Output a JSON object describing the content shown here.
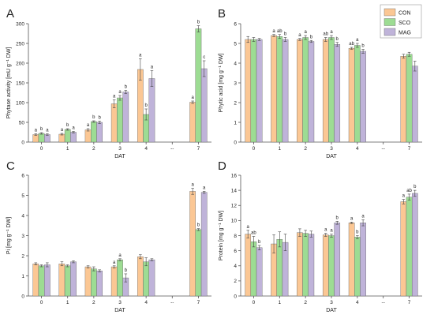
{
  "colors": {
    "CON": "#fbc794",
    "SCO": "#9ddc93",
    "MAG": "#bfb3d9",
    "axis": "#555555",
    "text": "#222222"
  },
  "legend": {
    "entries": [
      "CON",
      "SCO",
      "MAG"
    ],
    "placement": "top-right of panel B"
  },
  "chart_data": [
    {
      "panel": "A",
      "type": "bar",
      "categories": [
        "0",
        "1",
        "2",
        "3",
        "4",
        "--",
        "7"
      ],
      "xlabel": "DAT",
      "ylabel": "Phytase activity [mU g⁻¹ DW]",
      "ylim": [
        0,
        300
      ],
      "yticks": [
        0,
        50,
        100,
        150,
        200,
        250,
        300
      ],
      "grid": false,
      "series": [
        {
          "name": "CON",
          "values": [
            19,
            20,
            31,
            97,
            184,
            null,
            101
          ],
          "errors": [
            2,
            2,
            3,
            10,
            27,
            null,
            3
          ],
          "letters": [
            "a",
            "a",
            "a",
            "a",
            "a",
            "",
            "a"
          ]
        },
        {
          "name": "SCO",
          "values": [
            22,
            32,
            52,
            112,
            70,
            null,
            287
          ],
          "errors": [
            2,
            2,
            2,
            6,
            14,
            null,
            8
          ],
          "letters": [
            "b",
            "b",
            "b",
            "a",
            "b",
            "",
            "b"
          ]
        },
        {
          "name": "MAG",
          "values": [
            19,
            25,
            50,
            127,
            161,
            null,
            186
          ],
          "errors": [
            2,
            2,
            3,
            4,
            20,
            null,
            20
          ],
          "letters": [
            "a",
            "a",
            "b",
            "b",
            "a",
            "",
            "c"
          ]
        }
      ]
    },
    {
      "panel": "B",
      "type": "bar",
      "categories": [
        "0",
        "1",
        "2",
        "3",
        "4",
        "--",
        "7"
      ],
      "xlabel": "DAT",
      "ylabel": "Phytic acid [mg g⁻¹ DW]",
      "ylim": [
        0,
        6
      ],
      "yticks": [
        0,
        1,
        2,
        3,
        4,
        5,
        6
      ],
      "grid": false,
      "series": [
        {
          "name": "CON",
          "values": [
            5.2,
            5.4,
            5.2,
            5.2,
            4.75,
            null,
            4.35
          ],
          "errors": [
            0.15,
            0.05,
            0.05,
            0.1,
            0.05,
            null,
            0.1
          ],
          "letters": [
            "",
            "a",
            "a",
            "ab",
            "ab",
            "",
            ""
          ]
        },
        {
          "name": "SCO",
          "values": [
            5.2,
            5.35,
            5.3,
            5.3,
            4.9,
            null,
            4.45
          ],
          "errors": [
            0.1,
            0.1,
            0.1,
            0.1,
            0.1,
            null,
            0.1
          ],
          "letters": [
            "",
            "ab",
            "a",
            "a",
            "a",
            "",
            ""
          ]
        },
        {
          "name": "MAG",
          "values": [
            5.2,
            5.2,
            5.1,
            4.95,
            4.6,
            null,
            3.85
          ],
          "errors": [
            0.05,
            0.1,
            0.05,
            0.1,
            0.1,
            null,
            0.25
          ],
          "letters": [
            "",
            "b",
            "b",
            "b",
            "b",
            "",
            ""
          ]
        }
      ]
    },
    {
      "panel": "C",
      "type": "bar",
      "categories": [
        "0",
        "1",
        "2",
        "3",
        "4",
        "--",
        "7"
      ],
      "xlabel": "DAT",
      "ylabel": "Pi [mg g⁻¹ DW]",
      "ylim": [
        0,
        6
      ],
      "yticks": [
        0,
        1,
        2,
        3,
        4,
        5,
        6
      ],
      "grid": false,
      "series": [
        {
          "name": "CON",
          "values": [
            1.6,
            1.6,
            1.45,
            1.45,
            1.95,
            null,
            5.2
          ],
          "errors": [
            0.05,
            0.1,
            0.05,
            0.05,
            0.1,
            null,
            0.15
          ],
          "letters": [
            "",
            "",
            "",
            "a",
            "",
            "",
            "a"
          ]
        },
        {
          "name": "SCO",
          "values": [
            1.5,
            1.5,
            1.35,
            1.8,
            1.7,
            null,
            3.3
          ],
          "errors": [
            0.05,
            0.05,
            0.1,
            0.05,
            0.2,
            null,
            0.05
          ],
          "letters": [
            "",
            "",
            "",
            "a",
            "",
            "",
            "b"
          ]
        },
        {
          "name": "MAG",
          "values": [
            1.55,
            1.7,
            1.25,
            0.9,
            1.8,
            null,
            5.15
          ],
          "errors": [
            0.1,
            0.05,
            0.05,
            0.2,
            0.05,
            null,
            0.05
          ],
          "letters": [
            "",
            "",
            "",
            "b",
            "",
            "",
            "a"
          ]
        }
      ]
    },
    {
      "panel": "D",
      "type": "bar",
      "categories": [
        "0",
        "1",
        "2",
        "3",
        "4",
        "--",
        "7"
      ],
      "xlabel": "DAT",
      "ylabel": "Protein [mg g⁻¹ DW]",
      "ylim": [
        0,
        16
      ],
      "yticks": [
        0,
        2,
        4,
        6,
        8,
        10,
        12,
        14,
        16
      ],
      "grid": false,
      "series": [
        {
          "name": "CON",
          "values": [
            8.2,
            6.9,
            8.4,
            8.1,
            9.7,
            null,
            12.5
          ],
          "errors": [
            0.5,
            1.2,
            0.5,
            0.2,
            0.1,
            null,
            0.3
          ],
          "letters": [
            "a",
            "",
            "",
            "a",
            "a",
            "",
            "a"
          ]
        },
        {
          "name": "SCO",
          "values": [
            7.2,
            7.5,
            8.3,
            8.0,
            7.8,
            null,
            13.1
          ],
          "errors": [
            0.7,
            1.0,
            0.4,
            0.2,
            0.2,
            null,
            0.4
          ],
          "letters": [
            "ab",
            "",
            "",
            "a",
            "b",
            "",
            "ab"
          ]
        },
        {
          "name": "MAG",
          "values": [
            6.4,
            7.1,
            8.2,
            9.7,
            9.7,
            null,
            13.6
          ],
          "errors": [
            0.3,
            1.1,
            0.4,
            0.2,
            0.4,
            null,
            0.4
          ],
          "letters": [
            "b",
            "",
            "",
            "b",
            "a",
            "",
            "b"
          ]
        }
      ]
    }
  ]
}
